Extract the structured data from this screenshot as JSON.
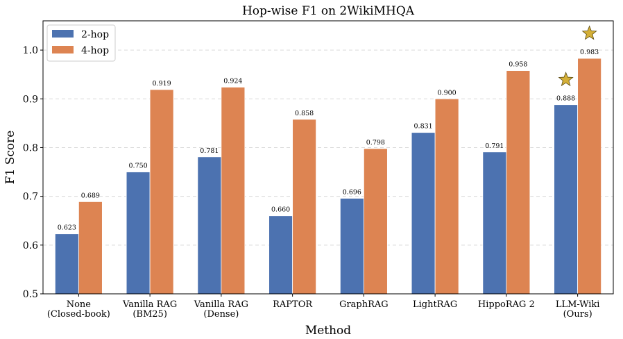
{
  "chart_data": {
    "type": "bar",
    "title": "Hop-wise F1 on 2WikiMHQA",
    "xlabel": "Method",
    "ylabel": "F1 Score",
    "ylim": [
      0.5,
      1.06
    ],
    "yticks": [
      0.5,
      0.6,
      0.7,
      0.8,
      0.9,
      1.0
    ],
    "ytick_labels": [
      "0.5",
      "0.6",
      "0.7",
      "0.8",
      "0.9",
      "1.0"
    ],
    "grid": true,
    "legend_position": "top-left",
    "categories": [
      [
        "None",
        "(Closed-book)"
      ],
      [
        "Vanilla RAG",
        "(BM25)"
      ],
      [
        "Vanilla RAG",
        "(Dense)"
      ],
      [
        "RAPTOR"
      ],
      [
        "GraphRAG"
      ],
      [
        "LightRAG"
      ],
      [
        "HippoRAG 2"
      ],
      [
        "LLM-Wiki",
        "(Ours)"
      ]
    ],
    "series": [
      {
        "name": "2-hop",
        "color": "#4c72b0",
        "values": [
          0.623,
          0.75,
          0.781,
          0.66,
          0.696,
          0.831,
          0.791,
          0.888
        ],
        "labels": [
          "0.623",
          "0.750",
          "0.781",
          "0.660",
          "0.696",
          "0.831",
          "0.791",
          "0.888"
        ]
      },
      {
        "name": "4-hop",
        "color": "#dd8452",
        "values": [
          0.689,
          0.919,
          0.924,
          0.858,
          0.798,
          0.9,
          0.958,
          0.983
        ],
        "labels": [
          "0.689",
          "0.919",
          "0.924",
          "0.858",
          "0.798",
          "0.900",
          "0.958",
          "0.983"
        ]
      }
    ],
    "highlight": {
      "category_index": 7,
      "marker": "star",
      "color": "#d4af37"
    }
  }
}
